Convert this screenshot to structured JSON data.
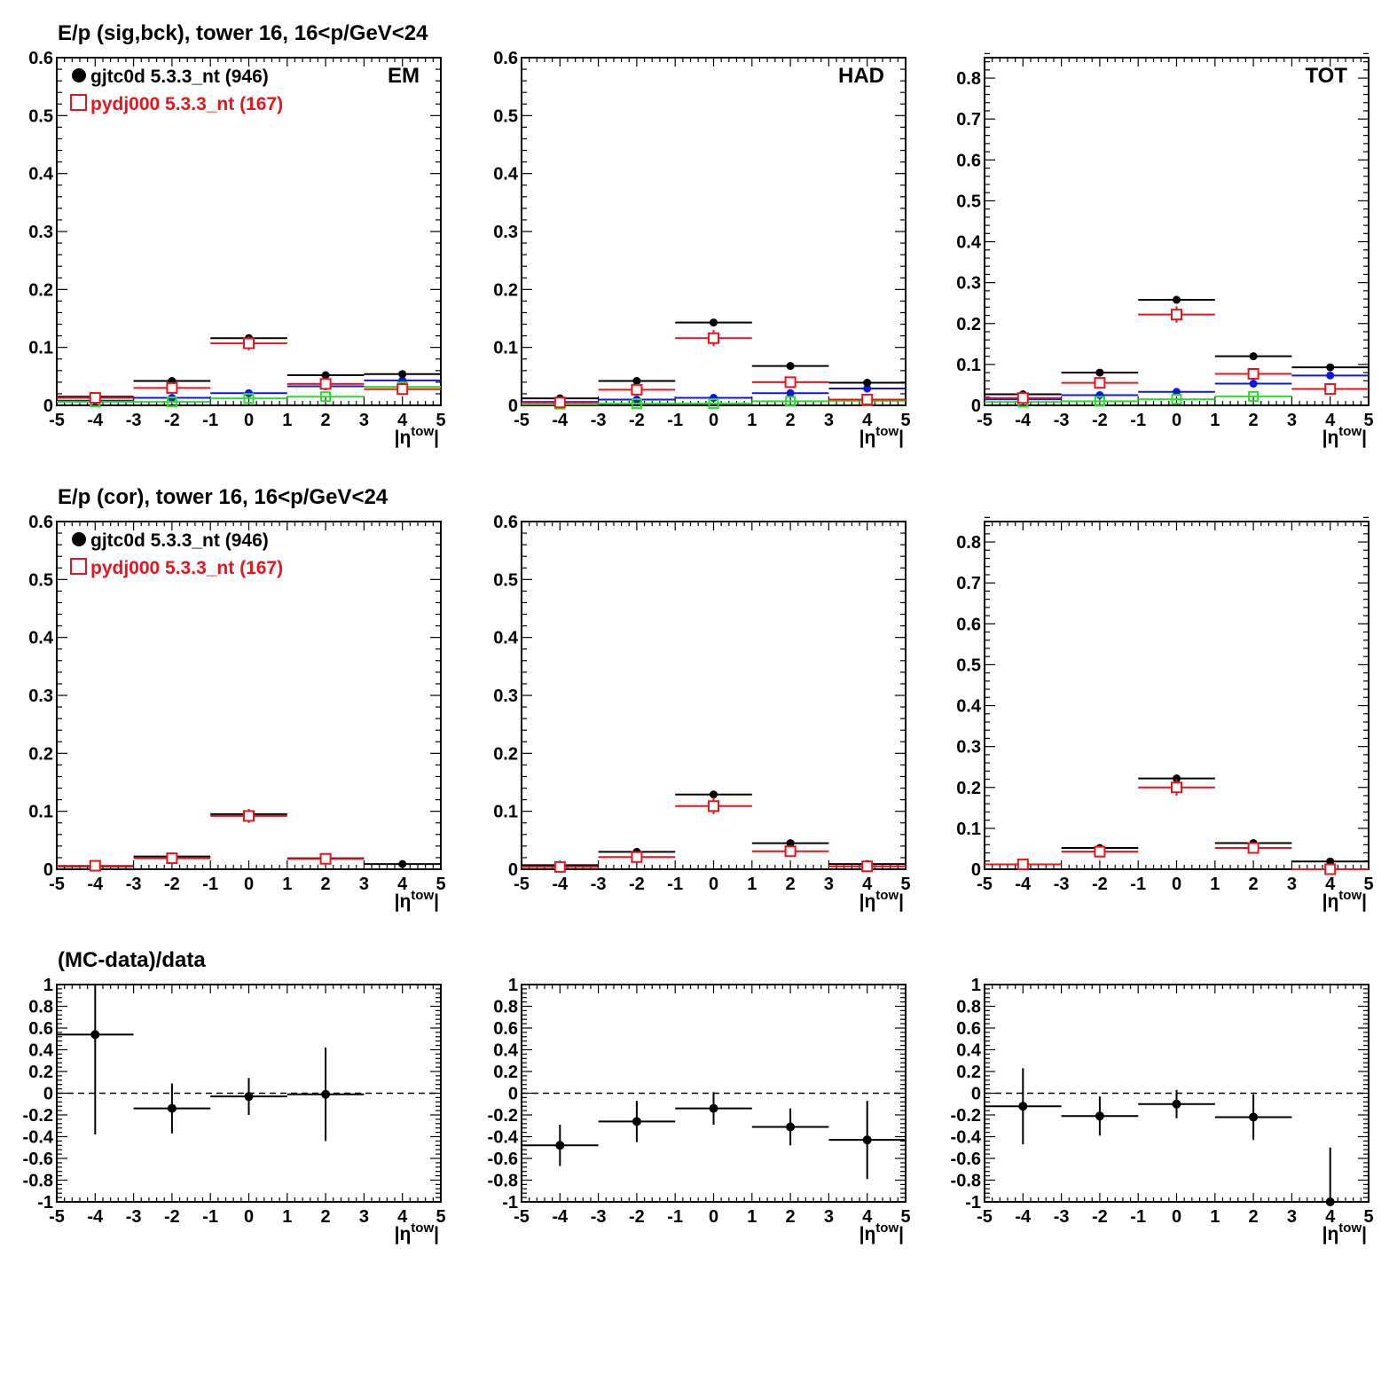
{
  "colors": {
    "data": "#000000",
    "mc": "#e8141c",
    "blue": "#1018e0",
    "green": "#28e028",
    "axis": "#000000"
  },
  "chart_data": [
    {
      "id": "sig-em",
      "type": "scatter",
      "title": "E/p (sig,bck), tower 16, 16<p/GeV<24",
      "label": "EM",
      "xlabel": "|η^tow|",
      "xlim": [
        -5,
        5
      ],
      "ylim": [
        0,
        0.6
      ],
      "yticks": [
        0,
        0.1,
        0.2,
        0.3,
        0.4,
        0.5,
        0.6
      ],
      "legend": [
        {
          "text": "gjtc0d 5.3.3_nt (946)",
          "marker": "filled-circle",
          "color": "#000000"
        },
        {
          "text": "pydj000 5.3.3_nt (167)",
          "marker": "open-square",
          "color": "#e8141c"
        }
      ],
      "series": [
        {
          "style": "black",
          "x": [
            -4,
            -2,
            0,
            2,
            4
          ],
          "y": [
            0.015,
            0.042,
            0.116,
            0.052,
            0.054
          ]
        },
        {
          "style": "red",
          "x": [
            -4,
            -2,
            0,
            2,
            4
          ],
          "y": [
            0.013,
            0.03,
            0.107,
            0.037,
            0.028
          ],
          "err": [
            0.004,
            0.005,
            0.012,
            0.006,
            0.006
          ]
        },
        {
          "style": "blue",
          "x": [
            -4,
            -2,
            0,
            2,
            4
          ],
          "y": [
            0.008,
            0.013,
            0.021,
            0.033,
            0.043
          ]
        },
        {
          "style": "green",
          "x": [
            -4,
            -2,
            0,
            2,
            4
          ],
          "y": [
            0.006,
            0.006,
            0.012,
            0.015,
            0.032
          ]
        }
      ]
    },
    {
      "id": "sig-had",
      "type": "scatter",
      "title": "",
      "label": "HAD",
      "xlabel": "|η^tow|",
      "xlim": [
        -5,
        5
      ],
      "ylim": [
        0,
        0.6
      ],
      "yticks": [
        0,
        0.1,
        0.2,
        0.3,
        0.4,
        0.5,
        0.6
      ],
      "legend": [],
      "series": [
        {
          "style": "black",
          "x": [
            -4,
            -2,
            0,
            2,
            4
          ],
          "y": [
            0.012,
            0.042,
            0.143,
            0.068,
            0.039
          ]
        },
        {
          "style": "red",
          "x": [
            -4,
            -2,
            0,
            2,
            4
          ],
          "y": [
            0.005,
            0.027,
            0.116,
            0.04,
            0.01
          ],
          "err": [
            0.004,
            0.006,
            0.014,
            0.006,
            0.005
          ]
        },
        {
          "style": "blue",
          "x": [
            -4,
            -2,
            0,
            2,
            4
          ],
          "y": [
            0.006,
            0.01,
            0.013,
            0.021,
            0.029
          ]
        },
        {
          "style": "green",
          "x": [
            -4,
            -2,
            0,
            2,
            4
          ],
          "y": [
            0.002,
            0.003,
            0.003,
            0.007,
            0.008
          ]
        }
      ]
    },
    {
      "id": "sig-tot",
      "type": "scatter",
      "title": "",
      "label": "TOT",
      "xlabel": "|η^tow|",
      "xlim": [
        -5,
        5
      ],
      "ylim": [
        0,
        0.85
      ],
      "yticks": [
        0,
        0.1,
        0.2,
        0.3,
        0.4,
        0.5,
        0.6,
        0.7,
        0.8
      ],
      "legend": [],
      "series": [
        {
          "style": "black",
          "x": [
            -4,
            -2,
            0,
            2,
            4
          ],
          "y": [
            0.027,
            0.08,
            0.258,
            0.12,
            0.093
          ]
        },
        {
          "style": "red",
          "x": [
            -4,
            -2,
            0,
            2,
            4
          ],
          "y": [
            0.018,
            0.055,
            0.222,
            0.077,
            0.04
          ],
          "err": [
            0.005,
            0.008,
            0.02,
            0.008,
            0.007
          ]
        },
        {
          "style": "blue",
          "x": [
            -4,
            -2,
            0,
            2,
            4
          ],
          "y": [
            0.015,
            0.025,
            0.033,
            0.053,
            0.073
          ]
        },
        {
          "style": "green",
          "x": [
            -4,
            -2,
            0,
            2,
            4
          ],
          "y": [
            0.008,
            0.01,
            0.015,
            0.022,
            0.04
          ]
        }
      ]
    },
    {
      "id": "cor-em",
      "type": "scatter",
      "title": "E/p (cor), tower 16, 16<p/GeV<24",
      "label": "",
      "xlabel": "|η^tow|",
      "xlim": [
        -5,
        5
      ],
      "ylim": [
        0,
        0.6
      ],
      "yticks": [
        0,
        0.1,
        0.2,
        0.3,
        0.4,
        0.5,
        0.6
      ],
      "legend": [
        {
          "text": "gjtc0d 5.3.3_nt (946)",
          "marker": "filled-circle",
          "color": "#000000"
        },
        {
          "text": "pydj000 5.3.3_nt (167)",
          "marker": "open-square",
          "color": "#e8141c"
        }
      ],
      "series": [
        {
          "style": "black",
          "x": [
            -4,
            -2,
            0,
            2,
            4
          ],
          "y": [
            0.005,
            0.022,
            0.095,
            0.019,
            0.009
          ]
        },
        {
          "style": "red",
          "x": [
            -4,
            -2,
            0,
            2,
            4
          ],
          "y": [
            0.006,
            0.019,
            0.092,
            0.018,
            null
          ],
          "err": [
            0.004,
            0.005,
            0.012,
            0.005,
            0
          ]
        }
      ]
    },
    {
      "id": "cor-had",
      "type": "scatter",
      "title": "",
      "label": "",
      "xlabel": "|η^tow|",
      "xlim": [
        -5,
        5
      ],
      "ylim": [
        0,
        0.6
      ],
      "yticks": [
        0,
        0.1,
        0.2,
        0.3,
        0.4,
        0.5,
        0.6
      ],
      "legend": [],
      "series": [
        {
          "style": "black",
          "x": [
            -4,
            -2,
            0,
            2,
            4
          ],
          "y": [
            0.007,
            0.03,
            0.129,
            0.045,
            0.009
          ]
        },
        {
          "style": "red",
          "x": [
            -4,
            -2,
            0,
            2,
            4
          ],
          "y": [
            0.004,
            0.021,
            0.109,
            0.031,
            0.005
          ],
          "err": [
            0.004,
            0.006,
            0.014,
            0.006,
            0.004
          ]
        }
      ]
    },
    {
      "id": "cor-tot",
      "type": "scatter",
      "title": "",
      "label": "",
      "xlabel": "|η^tow|",
      "xlim": [
        -5,
        5
      ],
      "ylim": [
        0,
        0.85
      ],
      "yticks": [
        0,
        0.1,
        0.2,
        0.3,
        0.4,
        0.5,
        0.6,
        0.7,
        0.8
      ],
      "legend": [],
      "series": [
        {
          "style": "black",
          "x": [
            -4,
            -2,
            0,
            2,
            4
          ],
          "y": [
            0.012,
            0.052,
            0.222,
            0.064,
            0.019
          ]
        },
        {
          "style": "red",
          "x": [
            -4,
            -2,
            0,
            2,
            4
          ],
          "y": [
            0.012,
            0.043,
            0.2,
            0.052,
            0.0
          ],
          "err": [
            0.005,
            0.008,
            0.02,
            0.008,
            0.004
          ]
        }
      ]
    },
    {
      "id": "ratio-em",
      "type": "scatter",
      "title": "(MC-data)/data",
      "label": "",
      "xlabel": "|η^tow|",
      "xlim": [
        -5,
        5
      ],
      "ylim": [
        -1,
        1
      ],
      "yticks": [
        -1,
        -0.8,
        -0.6,
        -0.4,
        -0.2,
        0,
        0.2,
        0.4,
        0.6,
        0.8,
        1
      ],
      "legend": [],
      "reference_line": 0,
      "series": [
        {
          "style": "ratio",
          "x": [
            -4,
            -2,
            0,
            2
          ],
          "y": [
            0.54,
            -0.14,
            -0.03,
            -0.01
          ],
          "err": [
            0.92,
            0.23,
            0.17,
            0.43
          ]
        }
      ]
    },
    {
      "id": "ratio-had",
      "type": "scatter",
      "title": "",
      "label": "",
      "xlabel": "|η^tow|",
      "xlim": [
        -5,
        5
      ],
      "ylim": [
        -1,
        1
      ],
      "yticks": [
        -1,
        -0.8,
        -0.6,
        -0.4,
        -0.2,
        0,
        0.2,
        0.4,
        0.6,
        0.8,
        1
      ],
      "legend": [],
      "reference_line": 0,
      "series": [
        {
          "style": "ratio",
          "x": [
            -4,
            -2,
            0,
            2,
            4
          ],
          "y": [
            -0.48,
            -0.26,
            -0.14,
            -0.31,
            -0.43
          ],
          "err": [
            0.19,
            0.19,
            0.15,
            0.17,
            0.36
          ]
        }
      ]
    },
    {
      "id": "ratio-tot",
      "type": "scatter",
      "title": "",
      "label": "",
      "xlabel": "|η^tow|",
      "xlim": [
        -5,
        5
      ],
      "ylim": [
        -1,
        1
      ],
      "yticks": [
        -1,
        -0.8,
        -0.6,
        -0.4,
        -0.2,
        0,
        0.2,
        0.4,
        0.6,
        0.8,
        1
      ],
      "legend": [],
      "reference_line": 0,
      "series": [
        {
          "style": "ratio",
          "x": [
            -4,
            -2,
            0,
            2,
            4
          ],
          "y": [
            -0.12,
            -0.21,
            -0.1,
            -0.22,
            -1.0
          ],
          "err": [
            0.35,
            0.18,
            0.13,
            0.21,
            0.5
          ]
        }
      ]
    }
  ]
}
